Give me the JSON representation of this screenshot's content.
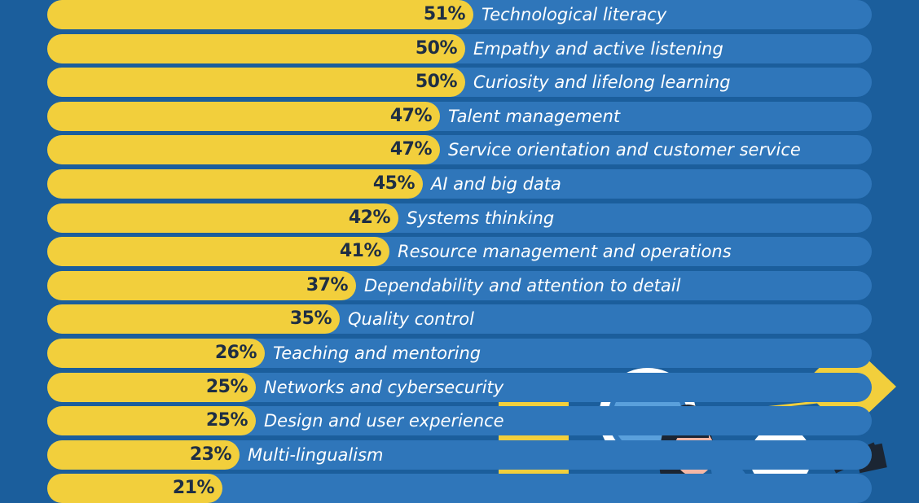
{
  "chart_data": {
    "type": "bar",
    "orientation": "horizontal",
    "value_format": "percent",
    "xlim": [
      0,
      100
    ],
    "categories": [
      "Technological literacy",
      "Empathy and active listening",
      "Curiosity and lifelong learning",
      "Talent management",
      "Service orientation and customer service",
      "AI and big data",
      "Systems thinking",
      "Resource management and operations",
      "Dependability and attention to detail",
      "Quality control",
      "Teaching and mentoring",
      "Networks and cybersecurity",
      "Design and user experience",
      "Multi-lingualism",
      ""
    ],
    "values": [
      51,
      50,
      50,
      47,
      47,
      45,
      42,
      41,
      37,
      35,
      26,
      25,
      25,
      23,
      21
    ],
    "value_labels": [
      "51%",
      "50%",
      "50%",
      "47%",
      "47%",
      "45%",
      "42%",
      "41%",
      "37%",
      "35%",
      "26%",
      "25%",
      "25%",
      "23%",
      "21%"
    ],
    "colors": {
      "background": "#1b5e9c",
      "track": "#2f76ba",
      "bar": "#f2cf3c",
      "value_text": "#1e2e44",
      "label_text": "#ffffff"
    }
  },
  "illustration": {
    "icons": [
      "magnifying-glass-icon",
      "person-icon",
      "yellow-card-icon",
      "lamp-icon"
    ]
  }
}
